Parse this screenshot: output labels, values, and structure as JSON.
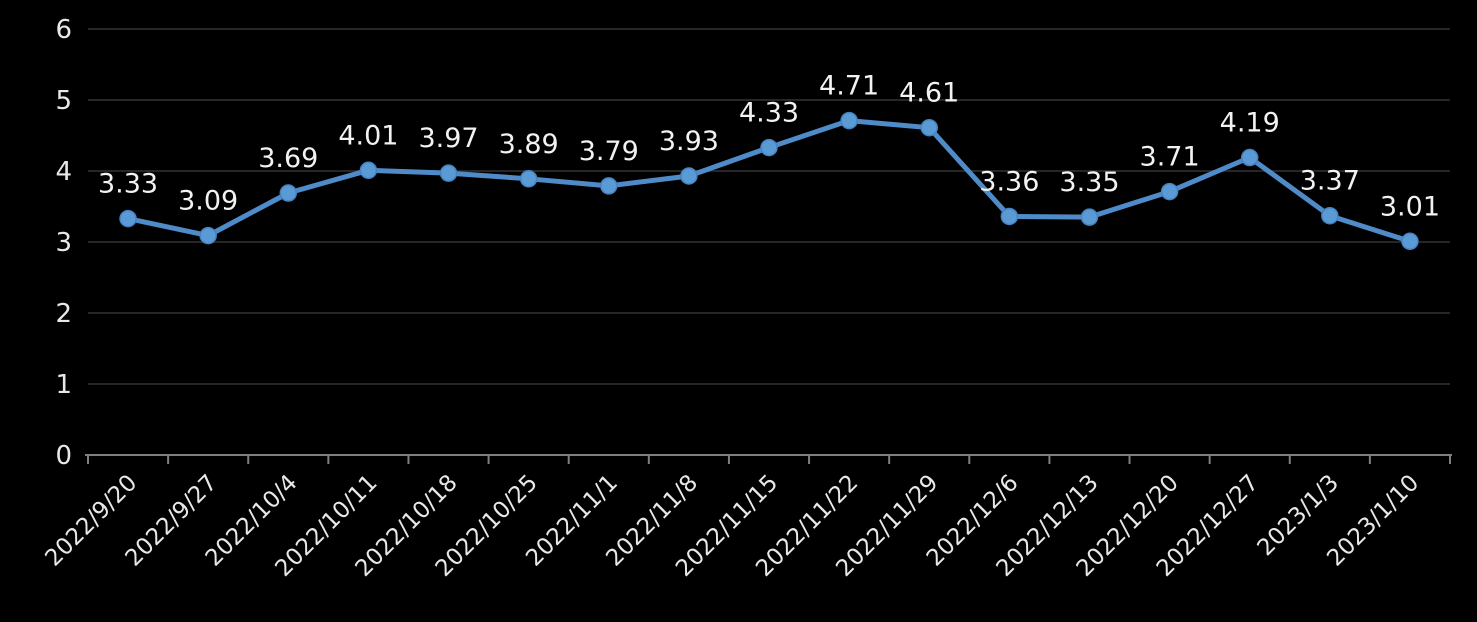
{
  "chart_data": {
    "type": "line",
    "title": "",
    "xlabel": "",
    "ylabel": "",
    "categories": [
      "2022/9/20",
      "2022/9/27",
      "2022/10/4",
      "2022/10/11",
      "2022/10/18",
      "2022/10/25",
      "2022/11/1",
      "2022/11/8",
      "2022/11/15",
      "2022/11/22",
      "2022/11/29",
      "2022/12/6",
      "2022/12/13",
      "2022/12/20",
      "2022/12/27",
      "2023/1/3",
      "2023/1/10"
    ],
    "series": [
      {
        "name": "value",
        "values": [
          3.33,
          3.09,
          3.69,
          4.01,
          3.97,
          3.89,
          3.79,
          3.93,
          4.33,
          4.71,
          4.61,
          3.36,
          3.35,
          3.71,
          4.19,
          3.37,
          3.01
        ]
      }
    ],
    "data_labels": [
      "3.33",
      "3.09",
      "3.69",
      "4.01",
      "3.97",
      "3.89",
      "3.79",
      "3.93",
      "4.33",
      "4.71",
      "4.61",
      "3.36",
      "3.35",
      "3.71",
      "4.19",
      "3.37",
      "3.01"
    ],
    "y_ticks": [
      "0",
      "1",
      "2",
      "3",
      "4",
      "5",
      "6"
    ],
    "ylim": [
      0,
      6
    ],
    "grid": "horizontal",
    "legend": "none",
    "x_label_rotation_deg": -45,
    "marker": "circle"
  },
  "colors": {
    "background": "#000000",
    "line": "#4E8BC8",
    "marker_fill": "#5B9BD5",
    "marker_edge": "#4583C2",
    "gridline": "#262626",
    "axis_line": "#7F7F7F",
    "tick_mark": "#7F7F7F",
    "axis_text": "#E8E8E8",
    "data_label_text": "#F2F2F2"
  }
}
